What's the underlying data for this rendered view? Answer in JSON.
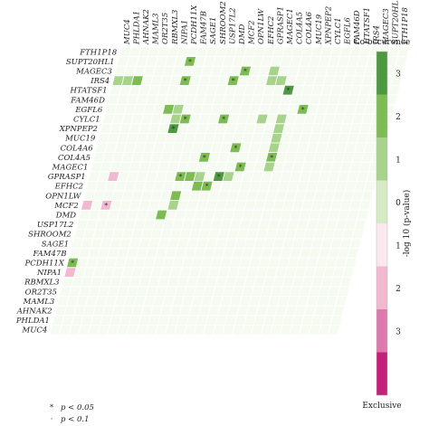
{
  "chart_data": {
    "type": "heatmap",
    "genes": [
      "MUC4",
      "PHLDA1",
      "AHNAK2",
      "MAML3",
      "OR2T35",
      "RBMXL3",
      "NIPA1",
      "PCDH11X",
      "FAM47B",
      "SAGE1",
      "SHROOM2",
      "USP17L2",
      "DMD",
      "MCF2",
      "OPN1LW",
      "EFHC2",
      "GPRASP1",
      "MAGEC1",
      "COL4A5",
      "COL4A6",
      "MUC19",
      "XPNPEP2",
      "CYLC1",
      "EGFL6",
      "FAM46D",
      "HTATSF1",
      "IRS4",
      "MAGEC3",
      "SUPT20HL1",
      "FTH1P18"
    ],
    "legend": {
      "title": "-log 10 (p-value)",
      "top_label": "Co-occurence",
      "bottom_label": "Exclusive",
      "ticks": [
        "3",
        "2",
        "1",
        "0",
        "1",
        "2",
        "3"
      ],
      "colors": [
        "#4c9a3f",
        "#7dbc52",
        "#a7d48a",
        "#d6ebc4",
        "#fbe8ef",
        "#f1b8d0",
        "#de79ad",
        "#c4207b"
      ]
    },
    "significance_legend": [
      {
        "symbol": "*",
        "label": "p < 0.05"
      },
      {
        "symbol": "·",
        "label": "p < 0.1"
      }
    ],
    "cells": [
      {
        "row": "SUPT20HL1",
        "col": "PCDH11X",
        "value": 2,
        "sig": "*"
      },
      {
        "row": "MAGEC3",
        "col": "MCF2",
        "value": 2,
        "sig": "*"
      },
      {
        "row": "MAGEC3",
        "col": "GPRASP1",
        "value": 1,
        "sig": ""
      },
      {
        "row": "IRS4",
        "col": "MUC4",
        "value": 1,
        "sig": ""
      },
      {
        "row": "IRS4",
        "col": "PHLDA1",
        "value": 1,
        "sig": ""
      },
      {
        "row": "IRS4",
        "col": "AHNAK2",
        "value": 2,
        "sig": ""
      },
      {
        "row": "IRS4",
        "col": "PCDH11X",
        "value": 2,
        "sig": "*"
      },
      {
        "row": "IRS4",
        "col": "DMD",
        "value": 2,
        "sig": "*"
      },
      {
        "row": "IRS4",
        "col": "GPRASP1",
        "value": 1,
        "sig": ""
      },
      {
        "row": "IRS4",
        "col": "MAGEC1",
        "value": 1,
        "sig": ""
      },
      {
        "row": "HTATSF1",
        "col": "COL4A5",
        "value": 3,
        "sig": "*"
      },
      {
        "row": "EGFL6",
        "col": "NIPA1",
        "value": 2,
        "sig": ""
      },
      {
        "row": "EGFL6",
        "col": "PCDH11X",
        "value": 1,
        "sig": ""
      },
      {
        "row": "EGFL6",
        "col": "MUC19",
        "value": 2,
        "sig": "*"
      },
      {
        "row": "CYLC1",
        "col": "PCDH11X",
        "value": 1,
        "sig": ""
      },
      {
        "row": "CYLC1",
        "col": "FAM47B",
        "value": 2,
        "sig": "*"
      },
      {
        "row": "CYLC1",
        "col": "DMD",
        "value": 2,
        "sig": "*"
      },
      {
        "row": "CYLC1",
        "col": "GPRASP1",
        "value": 1,
        "sig": ""
      },
      {
        "row": "CYLC1",
        "col": "COL4A5",
        "value": 1,
        "sig": ""
      },
      {
        "row": "XPNPEP2",
        "col": "PCDH11X",
        "value": 3,
        "sig": "*"
      },
      {
        "row": "XPNPEP2",
        "col": "COL4A5",
        "value": 1,
        "sig": ""
      },
      {
        "row": "MUC19",
        "col": "COL4A5",
        "value": 1,
        "sig": ""
      },
      {
        "row": "COL4A6",
        "col": "OPN1LW",
        "value": 2,
        "sig": "*"
      },
      {
        "row": "COL4A6",
        "col": "COL4A5",
        "value": 1,
        "sig": ""
      },
      {
        "row": "COL4A5",
        "col": "USP17L2",
        "value": 2,
        "sig": "*"
      },
      {
        "row": "COL4A5",
        "col": "COL4A5",
        "value": 2,
        "sig": "*"
      },
      {
        "row": "MAGEC1",
        "col": "EFHC2",
        "value": 2,
        "sig": "*"
      },
      {
        "row": "MAGEC1",
        "col": "COL4A5",
        "value": 1,
        "sig": ""
      },
      {
        "row": "GPRASP1",
        "col": "AHNAK2",
        "value": -1,
        "sig": ""
      },
      {
        "row": "GPRASP1",
        "col": "SAGE1",
        "value": 2,
        "sig": "*"
      },
      {
        "row": "GPRASP1",
        "col": "SHROOM2",
        "value": 2,
        "sig": ""
      },
      {
        "row": "GPRASP1",
        "col": "USP17L2",
        "value": 1,
        "sig": ""
      },
      {
        "row": "GPRASP1",
        "col": "MCF2",
        "value": 3,
        "sig": "*"
      },
      {
        "row": "GPRASP1",
        "col": "OPN1LW",
        "value": 1,
        "sig": ""
      },
      {
        "row": "EFHC2",
        "col": "USP17L2",
        "value": 2,
        "sig": ""
      },
      {
        "row": "EFHC2",
        "col": "DMD",
        "value": 2,
        "sig": "*"
      },
      {
        "row": "OPN1LW",
        "col": "SAGE1",
        "value": 2,
        "sig": ""
      },
      {
        "row": "MCF2",
        "col": "MUC4",
        "value": -1,
        "sig": ""
      },
      {
        "row": "MCF2",
        "col": "AHNAK2",
        "value": -1,
        "sig": "*"
      },
      {
        "row": "MCF2",
        "col": "SAGE1",
        "value": 1,
        "sig": ""
      },
      {
        "row": "DMD",
        "col": "FAM47B",
        "value": 2,
        "sig": ""
      },
      {
        "row": "PCDH11X",
        "col": "MUC4",
        "value": 2,
        "sig": "*"
      },
      {
        "row": "NIPA1",
        "col": "MUC4",
        "value": -1,
        "sig": ""
      }
    ]
  }
}
